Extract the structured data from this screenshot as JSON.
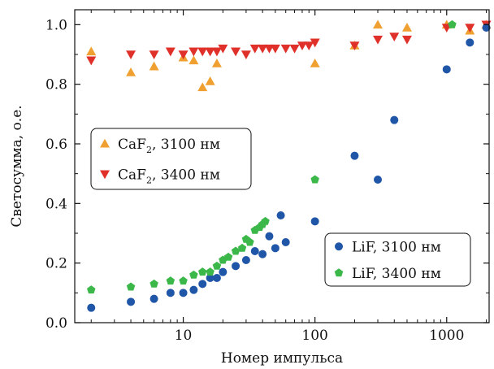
{
  "chart_data": {
    "type": "scatter",
    "xlabel": "Номер импульса",
    "ylabel": "Светосумма, о.е.",
    "xscale": "log",
    "xlim": [
      1.5,
      2100
    ],
    "ylim": [
      0.0,
      1.05
    ],
    "x_ticks": [
      {
        "value": 10,
        "label": "10"
      },
      {
        "value": 100,
        "label": "100"
      },
      {
        "value": 1000,
        "label": "1000"
      }
    ],
    "y_ticks": [
      {
        "value": 0.0,
        "label": "0.0"
      },
      {
        "value": 0.2,
        "label": "0.2"
      },
      {
        "value": 0.4,
        "label": "0.4"
      },
      {
        "value": 0.6,
        "label": "0.6"
      },
      {
        "value": 0.8,
        "label": "0.8"
      },
      {
        "value": 1.0,
        "label": "1.0"
      }
    ],
    "grid": false,
    "legends": [
      {
        "placement": "middle-left",
        "entries": [
          0,
          1
        ]
      },
      {
        "placement": "bottom-right",
        "entries": [
          2,
          3
        ]
      }
    ],
    "series": [
      {
        "name": "CaF",
        "name_sub": "2",
        "name_suffix": ", 3100 нм",
        "marker": "triangle-up",
        "color": "#f0a030",
        "points": [
          [
            2,
            0.91
          ],
          [
            4,
            0.84
          ],
          [
            6,
            0.86
          ],
          [
            10,
            0.89
          ],
          [
            12,
            0.88
          ],
          [
            14,
            0.79
          ],
          [
            16,
            0.81
          ],
          [
            18,
            0.87
          ],
          [
            100,
            0.87
          ],
          [
            200,
            0.93
          ],
          [
            300,
            1.0
          ],
          [
            500,
            0.99
          ],
          [
            1000,
            1.0
          ],
          [
            1500,
            0.98
          ],
          [
            2000,
            1.0
          ]
        ]
      },
      {
        "name": "CaF",
        "name_sub": "2",
        "name_suffix": ", 3400 нм",
        "marker": "triangle-down",
        "color": "#e0302a",
        "points": [
          [
            2,
            0.88
          ],
          [
            4,
            0.9
          ],
          [
            6,
            0.9
          ],
          [
            8,
            0.91
          ],
          [
            10,
            0.9
          ],
          [
            12,
            0.91
          ],
          [
            14,
            0.91
          ],
          [
            16,
            0.91
          ],
          [
            18,
            0.91
          ],
          [
            20,
            0.92
          ],
          [
            25,
            0.91
          ],
          [
            30,
            0.9
          ],
          [
            35,
            0.92
          ],
          [
            40,
            0.92
          ],
          [
            45,
            0.92
          ],
          [
            50,
            0.92
          ],
          [
            60,
            0.92
          ],
          [
            70,
            0.92
          ],
          [
            80,
            0.93
          ],
          [
            90,
            0.93
          ],
          [
            100,
            0.94
          ],
          [
            200,
            0.93
          ],
          [
            300,
            0.95
          ],
          [
            400,
            0.96
          ],
          [
            500,
            0.95
          ],
          [
            1000,
            0.99
          ],
          [
            1500,
            0.99
          ],
          [
            2000,
            1.0
          ]
        ]
      },
      {
        "name": "LiF, 3100 нм",
        "name_sub": "",
        "name_suffix": "",
        "marker": "circle",
        "color": "#1f56a8",
        "points": [
          [
            2,
            0.05
          ],
          [
            4,
            0.07
          ],
          [
            6,
            0.08
          ],
          [
            8,
            0.1
          ],
          [
            10,
            0.1
          ],
          [
            12,
            0.11
          ],
          [
            14,
            0.13
          ],
          [
            16,
            0.15
          ],
          [
            18,
            0.15
          ],
          [
            20,
            0.17
          ],
          [
            25,
            0.19
          ],
          [
            30,
            0.21
          ],
          [
            35,
            0.24
          ],
          [
            40,
            0.23
          ],
          [
            45,
            0.29
          ],
          [
            50,
            0.25
          ],
          [
            55,
            0.36
          ],
          [
            60,
            0.27
          ],
          [
            100,
            0.34
          ],
          [
            200,
            0.56
          ],
          [
            300,
            0.48
          ],
          [
            400,
            0.68
          ],
          [
            1000,
            0.85
          ],
          [
            1500,
            0.94
          ],
          [
            2000,
            0.99
          ]
        ]
      },
      {
        "name": "LiF, 3400 нм",
        "name_sub": "",
        "name_suffix": "",
        "marker": "pentagon",
        "color": "#3cb84a",
        "points": [
          [
            2,
            0.11
          ],
          [
            4,
            0.12
          ],
          [
            6,
            0.13
          ],
          [
            8,
            0.14
          ],
          [
            10,
            0.14
          ],
          [
            12,
            0.16
          ],
          [
            14,
            0.17
          ],
          [
            16,
            0.17
          ],
          [
            18,
            0.19
          ],
          [
            20,
            0.21
          ],
          [
            22,
            0.22
          ],
          [
            25,
            0.24
          ],
          [
            28,
            0.25
          ],
          [
            30,
            0.28
          ],
          [
            32,
            0.27
          ],
          [
            35,
            0.31
          ],
          [
            38,
            0.32
          ],
          [
            40,
            0.33
          ],
          [
            42,
            0.34
          ],
          [
            100,
            0.48
          ],
          [
            1100,
            1.0
          ]
        ]
      }
    ]
  }
}
